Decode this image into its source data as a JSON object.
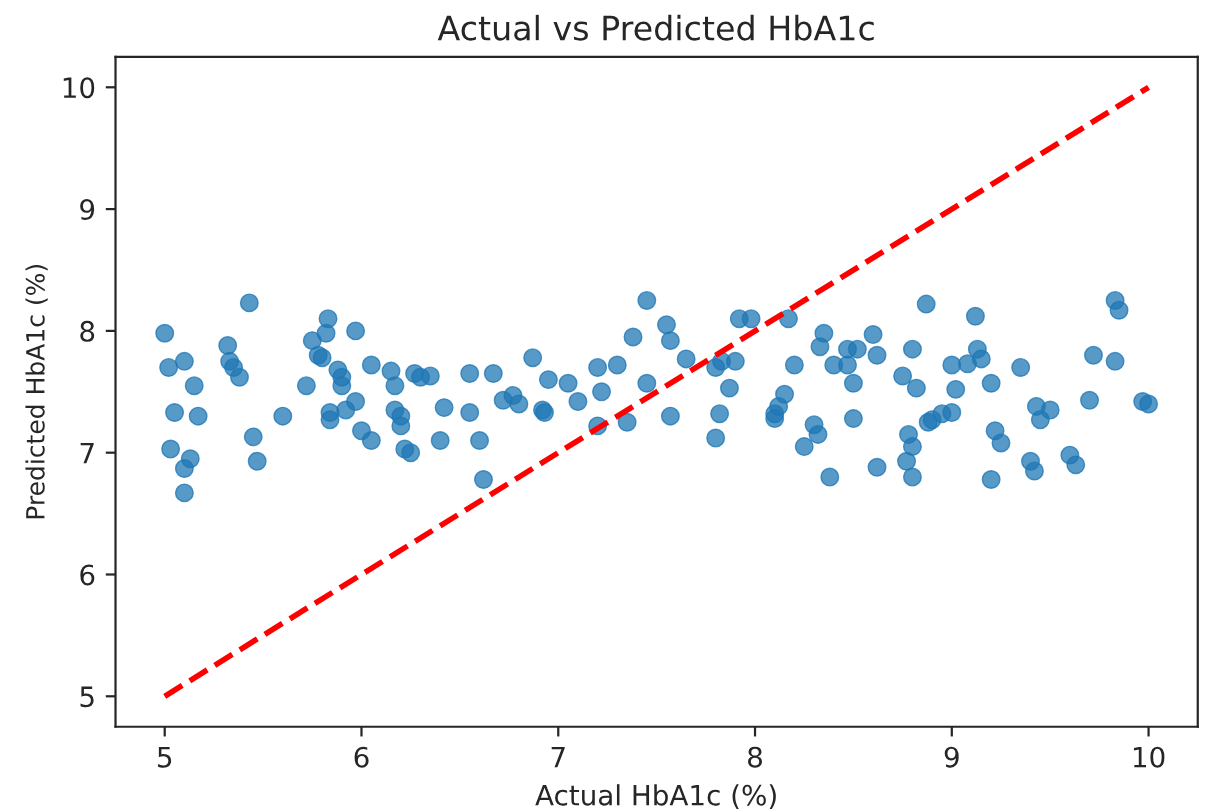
{
  "chart_data": {
    "type": "scatter",
    "title": "Actual vs Predicted HbA1c",
    "xlabel": "Actual HbA1c (%)",
    "ylabel": "Predicted HbA1c (%)",
    "xlim": [
      4.75,
      10.25
    ],
    "ylim": [
      4.75,
      10.25
    ],
    "xticks": [
      5,
      6,
      7,
      8,
      9,
      10
    ],
    "yticks": [
      5,
      6,
      7,
      8,
      9,
      10
    ],
    "grid": false,
    "marker": "circle",
    "series": [
      {
        "color": "#1f77b4",
        "x": [
          5.0,
          5.02,
          5.05,
          5.03,
          5.1,
          5.1,
          5.1,
          5.13,
          5.15,
          5.17,
          5.32,
          5.33,
          5.35,
          5.38,
          5.43,
          5.45,
          5.47,
          5.6,
          5.72,
          5.75,
          5.78,
          5.8,
          5.82,
          5.83,
          5.84,
          5.84,
          5.88,
          5.9,
          5.9,
          5.92,
          5.97,
          5.97,
          6.0,
          6.05,
          6.05,
          6.15,
          6.17,
          6.17,
          6.2,
          6.2,
          6.22,
          6.25,
          6.27,
          6.3,
          6.35,
          6.4,
          6.42,
          6.55,
          6.55,
          6.6,
          6.62,
          6.67,
          6.72,
          6.77,
          6.8,
          6.87,
          6.92,
          6.93,
          6.95,
          7.05,
          7.1,
          7.2,
          7.2,
          7.22,
          7.3,
          7.35,
          7.38,
          7.45,
          7.45,
          7.55,
          7.57,
          7.57,
          7.65,
          7.8,
          7.8,
          7.82,
          7.83,
          7.87,
          7.9,
          7.92,
          7.98,
          8.1,
          8.1,
          8.12,
          8.15,
          8.17,
          8.2,
          8.25,
          8.3,
          8.32,
          8.33,
          8.35,
          8.38,
          8.4,
          8.47,
          8.47,
          8.5,
          8.5,
          8.52,
          8.6,
          8.62,
          8.62,
          8.75,
          8.77,
          8.78,
          8.8,
          8.8,
          8.8,
          8.82,
          8.87,
          8.88,
          8.9,
          8.95,
          9.0,
          9.0,
          9.02,
          9.08,
          9.12,
          9.13,
          9.15,
          9.2,
          9.2,
          9.22,
          9.25,
          9.35,
          9.4,
          9.42,
          9.43,
          9.45,
          9.5,
          9.6,
          9.63,
          9.7,
          9.72,
          9.83,
          9.83,
          9.85,
          9.97,
          10.0
        ],
        "values": [
          7.98,
          7.7,
          7.33,
          7.03,
          7.75,
          6.87,
          6.67,
          6.95,
          7.55,
          7.3,
          7.88,
          7.75,
          7.7,
          7.62,
          8.23,
          7.13,
          6.93,
          7.3,
          7.55,
          7.92,
          7.8,
          7.78,
          7.98,
          8.1,
          7.33,
          7.27,
          7.68,
          7.55,
          7.62,
          7.35,
          7.42,
          8.0,
          7.18,
          7.1,
          7.72,
          7.67,
          7.55,
          7.35,
          7.3,
          7.22,
          7.03,
          7.0,
          7.65,
          7.62,
          7.63,
          7.1,
          7.37,
          7.65,
          7.33,
          7.1,
          6.78,
          7.65,
          7.43,
          7.47,
          7.4,
          7.78,
          7.35,
          7.33,
          7.6,
          7.57,
          7.42,
          7.7,
          7.22,
          7.5,
          7.72,
          7.25,
          7.95,
          8.25,
          7.57,
          8.05,
          7.92,
          7.3,
          7.77,
          7.7,
          7.12,
          7.32,
          7.75,
          7.53,
          7.75,
          8.1,
          8.1,
          7.28,
          7.32,
          7.38,
          7.48,
          8.1,
          7.72,
          7.05,
          7.23,
          7.15,
          7.87,
          7.98,
          6.8,
          7.72,
          7.85,
          7.72,
          7.57,
          7.28,
          7.85,
          7.97,
          6.88,
          7.8,
          7.63,
          6.93,
          7.15,
          7.85,
          6.8,
          7.05,
          7.53,
          8.22,
          7.25,
          7.27,
          7.32,
          7.33,
          7.72,
          7.52,
          7.73,
          8.12,
          7.85,
          7.77,
          6.78,
          7.57,
          7.18,
          7.08,
          7.7,
          6.93,
          6.85,
          7.38,
          7.27,
          7.35,
          6.98,
          6.9,
          7.43,
          7.8,
          8.25,
          7.75,
          8.17,
          7.42,
          7.4
        ]
      },
      {
        "type": "line",
        "color": "#ff0000",
        "line_style": "dashed",
        "marker": "none",
        "x": [
          5,
          10
        ],
        "values": [
          5,
          10
        ]
      }
    ]
  }
}
